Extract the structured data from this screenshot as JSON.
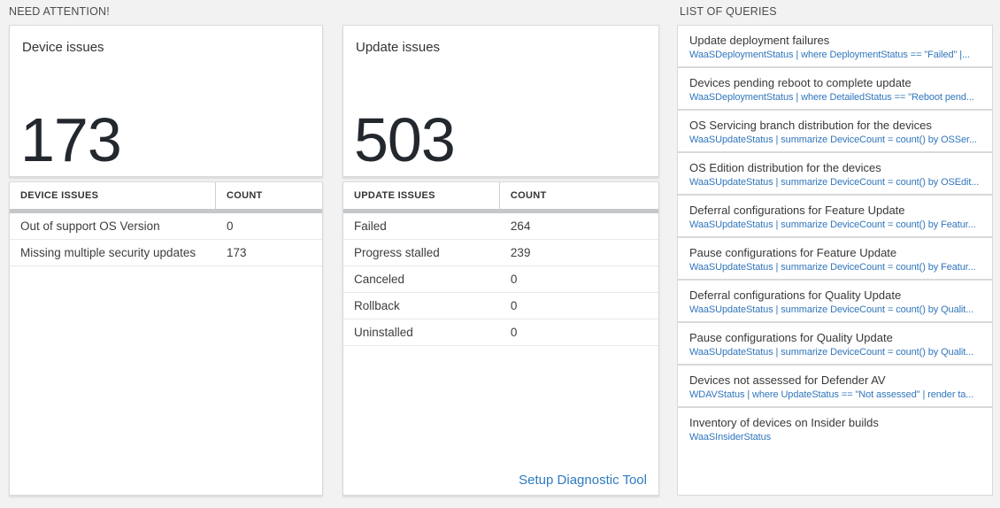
{
  "sections": {
    "need_attention_header": "NEED ATTENTION!",
    "queries_header": "LIST OF QUERIES"
  },
  "device_tile": {
    "title": "Device issues",
    "count": "173"
  },
  "update_tile": {
    "title": "Update issues",
    "count": "503"
  },
  "device_table": {
    "col_issue": "DEVICE ISSUES",
    "col_count": "COUNT",
    "rows": [
      {
        "label": "Out of support OS Version",
        "value": "0"
      },
      {
        "label": "Missing multiple security updates",
        "value": "173"
      }
    ]
  },
  "update_table": {
    "col_issue": "UPDATE ISSUES",
    "col_count": "COUNT",
    "rows": [
      {
        "label": "Failed",
        "value": "264"
      },
      {
        "label": "Progress stalled",
        "value": "239"
      },
      {
        "label": "Canceled",
        "value": "0"
      },
      {
        "label": "Rollback",
        "value": "0"
      },
      {
        "label": "Uninstalled",
        "value": "0"
      }
    ],
    "link_label": "Setup Diagnostic Tool"
  },
  "queries": {
    "items": [
      {
        "title": "Update deployment failures",
        "query": "WaaSDeploymentStatus | where DeploymentStatus == \"Failed\" |..."
      },
      {
        "title": "Devices pending reboot to complete update",
        "query": "WaaSDeploymentStatus | where DetailedStatus == \"Reboot pend..."
      },
      {
        "title": "OS Servicing branch distribution for the devices",
        "query": "WaaSUpdateStatus | summarize DeviceCount = count() by OSSer..."
      },
      {
        "title": "OS Edition distribution for the devices",
        "query": "WaaSUpdateStatus | summarize DeviceCount = count() by OSEdit..."
      },
      {
        "title": "Deferral configurations for Feature Update",
        "query": "WaaSUpdateStatus | summarize DeviceCount = count() by Featur..."
      },
      {
        "title": "Pause configurations for Feature Update",
        "query": "WaaSUpdateStatus | summarize DeviceCount = count() by Featur..."
      },
      {
        "title": "Deferral configurations for Quality Update",
        "query": "WaaSUpdateStatus | summarize DeviceCount = count() by Qualit..."
      },
      {
        "title": "Pause configurations for Quality Update",
        "query": "WaaSUpdateStatus | summarize DeviceCount = count() by Qualit..."
      },
      {
        "title": "Devices not assessed for Defender AV",
        "query": "WDAVStatus | where UpdateStatus == \"Not assessed\" | render ta..."
      },
      {
        "title": "Inventory of devices on Insider builds",
        "query": "WaaSInsiderStatus"
      }
    ]
  },
  "colors": {
    "page_bg": "#f2f2f2",
    "card_border": "#d9d9d9",
    "query_blue": "#3076bc",
    "link_blue": "#2e7bbf",
    "big_number": "#23282e",
    "thick_bar": "#c4c8cb"
  }
}
